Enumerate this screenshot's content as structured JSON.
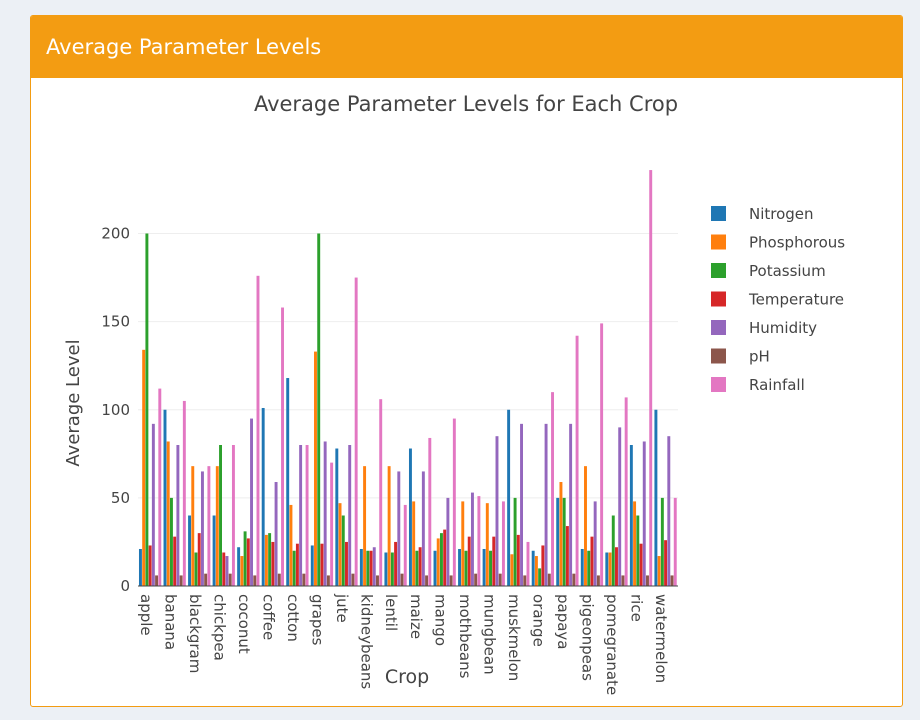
{
  "card": {
    "title": "Average Parameter Levels"
  },
  "colors": {
    "Nitrogen": "#1f77b4",
    "Phosphorous": "#ff7f0e",
    "Potassium": "#2ca02c",
    "Temperature": "#d62728",
    "Humidity": "#9467bd",
    "pH": "#8c564b",
    "Rainfall": "#e377c2"
  },
  "chart_data": {
    "type": "bar",
    "title": "Average Parameter Levels for Each Crop",
    "xlabel": "Crop",
    "ylabel": "Average Level",
    "ylim": [
      0,
      240
    ],
    "yticks": [
      0,
      50,
      100,
      150,
      200
    ],
    "grid": true,
    "legend": "right",
    "categories": [
      "apple",
      "banana",
      "blackgram",
      "chickpea",
      "coconut",
      "coffee",
      "cotton",
      "grapes",
      "jute",
      "kidneybeans",
      "lentil",
      "maize",
      "mango",
      "mothbeans",
      "mungbean",
      "muskmelon",
      "orange",
      "papaya",
      "pigeonpeas",
      "pomegranate",
      "rice",
      "watermelon"
    ],
    "series": [
      {
        "name": "Nitrogen",
        "values": [
          21,
          100,
          40,
          40,
          22,
          101,
          118,
          23,
          78,
          21,
          19,
          78,
          20,
          21,
          21,
          100,
          20,
          50,
          21,
          19,
          80,
          100
        ]
      },
      {
        "name": "Phosphorous",
        "values": [
          134,
          82,
          68,
          68,
          17,
          29,
          46,
          133,
          47,
          68,
          68,
          48,
          27,
          48,
          47,
          18,
          17,
          59,
          68,
          19,
          48,
          17
        ]
      },
      {
        "name": "Potassium",
        "values": [
          200,
          50,
          19,
          80,
          31,
          30,
          20,
          200,
          40,
          20,
          19,
          20,
          30,
          20,
          20,
          50,
          10,
          50,
          20,
          40,
          40,
          50
        ]
      },
      {
        "name": "Temperature",
        "values": [
          23,
          28,
          30,
          19,
          27,
          25,
          24,
          24,
          25,
          20,
          25,
          22,
          32,
          28,
          28,
          29,
          23,
          34,
          28,
          22,
          24,
          26
        ]
      },
      {
        "name": "Humidity",
        "values": [
          92,
          80,
          65,
          17,
          95,
          59,
          80,
          82,
          80,
          22,
          65,
          65,
          50,
          53,
          85,
          92,
          92,
          92,
          48,
          90,
          82,
          85
        ]
      },
      {
        "name": "pH",
        "values": [
          6,
          6,
          7,
          7,
          6,
          7,
          7,
          6,
          7,
          6,
          7,
          6,
          6,
          7,
          7,
          6,
          7,
          7,
          6,
          6,
          6,
          6
        ]
      },
      {
        "name": "Rainfall",
        "values": [
          112,
          105,
          68,
          80,
          176,
          158,
          80,
          70,
          175,
          106,
          46,
          84,
          95,
          51,
          48,
          25,
          110,
          142,
          149,
          107,
          236,
          50
        ]
      }
    ]
  }
}
